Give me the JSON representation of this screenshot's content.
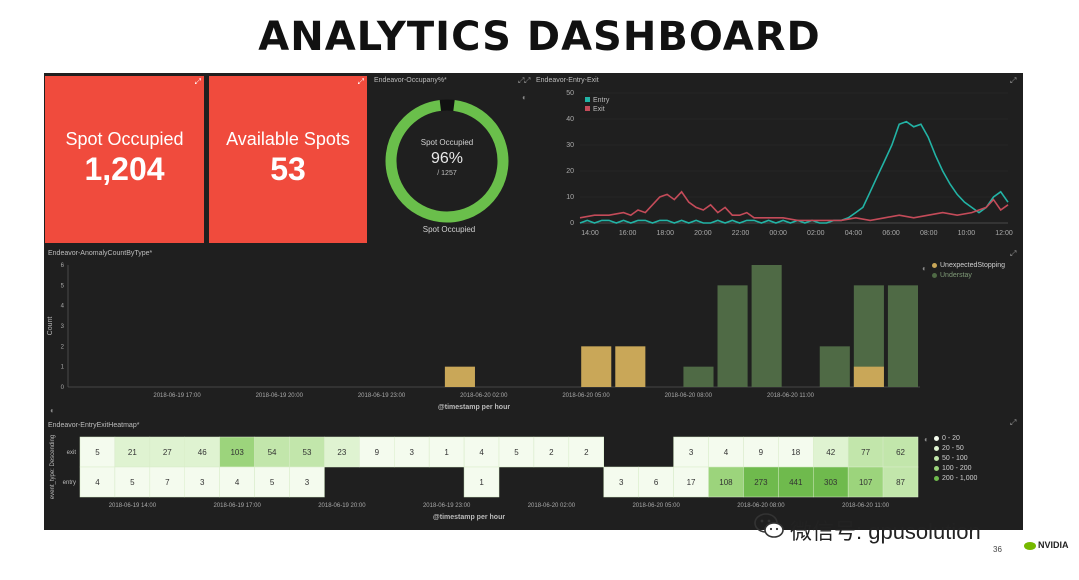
{
  "slide": {
    "title": "ANALYTICS DASHBOARD",
    "page_number": "36"
  },
  "watermark": {
    "text": "微信号: gpusolution",
    "icon": "wechat-icon"
  },
  "brand": {
    "name": "NVIDIA",
    "color": "#76b900"
  },
  "colors": {
    "dashboard_bg": "#1f1f1f",
    "metric_bg": "#f04b3d",
    "gauge_green": "#6abf4b",
    "entry": "#22b3a5",
    "exit": "#c44b59",
    "unexpected": "#c9a758",
    "understay": "#4f6a45"
  },
  "metric_spot_occupied": {
    "label": "Spot Occupied",
    "value": "1,204"
  },
  "metric_available": {
    "label": "Available Spots",
    "value": "53"
  },
  "occupancy_gauge": {
    "title": "Endeavor-Occupany%*",
    "label": "Spot Occupied",
    "percent": 96,
    "percent_text": "96%",
    "total_text": "/ 1257",
    "footer": "Spot Occupied"
  },
  "entry_exit": {
    "title": "Endeavor-Entry-Exit"
  },
  "anomaly": {
    "title": "Endeavor-AnomalyCountByType*"
  },
  "heatmap": {
    "title": "Endeavor-EntryExitHeatmap*"
  },
  "chart_data": [
    {
      "type": "line",
      "title": "Endeavor-Entry-Exit",
      "x": [
        "14:00",
        "16:00",
        "18:00",
        "20:00",
        "22:00",
        "00:00",
        "02:00",
        "04:00",
        "06:00",
        "08:00",
        "10:00",
        "12:00"
      ],
      "ylim": [
        0,
        50
      ],
      "yticks": [
        0,
        10,
        20,
        30,
        40,
        50
      ],
      "legend_position": "top-left",
      "series": [
        {
          "name": "Entry",
          "color": "#22b3a5",
          "points": [
            [
              0,
              0
            ],
            [
              1,
              1
            ],
            [
              2,
              0
            ],
            [
              3,
              1
            ],
            [
              4,
              1
            ],
            [
              5,
              0
            ],
            [
              6,
              1
            ],
            [
              7,
              0
            ],
            [
              8,
              1
            ],
            [
              9,
              1
            ],
            [
              10,
              0
            ],
            [
              11,
              1
            ],
            [
              12,
              1
            ],
            [
              13,
              0
            ],
            [
              14,
              1
            ],
            [
              15,
              0
            ],
            [
              16,
              1
            ],
            [
              17,
              0
            ],
            [
              18,
              0
            ],
            [
              19,
              1
            ],
            [
              20,
              0
            ],
            [
              21,
              1
            ],
            [
              22,
              0
            ],
            [
              23,
              1
            ],
            [
              24,
              1
            ],
            [
              25,
              0
            ],
            [
              26,
              1
            ],
            [
              27,
              0
            ],
            [
              28,
              1
            ],
            [
              29,
              0
            ],
            [
              30,
              1
            ],
            [
              31,
              0
            ],
            [
              32,
              1
            ],
            [
              33,
              0
            ],
            [
              34,
              0
            ],
            [
              35,
              1
            ],
            [
              36,
              1
            ],
            [
              37,
              2
            ],
            [
              38,
              4
            ],
            [
              39,
              6
            ],
            [
              40,
              12
            ],
            [
              41,
              18
            ],
            [
              42,
              24
            ],
            [
              43,
              30
            ],
            [
              44,
              38
            ],
            [
              45,
              39
            ],
            [
              46,
              37
            ],
            [
              47,
              38
            ],
            [
              48,
              33
            ],
            [
              49,
              26
            ],
            [
              50,
              20
            ],
            [
              51,
              15
            ],
            [
              52,
              11
            ],
            [
              53,
              8
            ],
            [
              54,
              6
            ],
            [
              55,
              4
            ],
            [
              56,
              6
            ],
            [
              57,
              10
            ],
            [
              58,
              12
            ],
            [
              59,
              8
            ]
          ]
        },
        {
          "name": "Exit",
          "color": "#c44b59",
          "points": [
            [
              0,
              2
            ],
            [
              2,
              3
            ],
            [
              4,
              3
            ],
            [
              6,
              4
            ],
            [
              7,
              3
            ],
            [
              8,
              5
            ],
            [
              9,
              4
            ],
            [
              10,
              7
            ],
            [
              11,
              10
            ],
            [
              12,
              11
            ],
            [
              13,
              9
            ],
            [
              14,
              12
            ],
            [
              15,
              8
            ],
            [
              16,
              6
            ],
            [
              17,
              5
            ],
            [
              18,
              7
            ],
            [
              19,
              4
            ],
            [
              20,
              6
            ],
            [
              21,
              3
            ],
            [
              22,
              3
            ],
            [
              23,
              4
            ],
            [
              24,
              2
            ],
            [
              26,
              2
            ],
            [
              28,
              2
            ],
            [
              30,
              1
            ],
            [
              32,
              1
            ],
            [
              34,
              1
            ],
            [
              36,
              1
            ],
            [
              38,
              2
            ],
            [
              40,
              1
            ],
            [
              42,
              2
            ],
            [
              44,
              3
            ],
            [
              46,
              2
            ],
            [
              48,
              3
            ],
            [
              50,
              4
            ],
            [
              52,
              3
            ],
            [
              54,
              4
            ],
            [
              56,
              6
            ],
            [
              57,
              9
            ],
            [
              58,
              5
            ],
            [
              59,
              7
            ]
          ]
        }
      ]
    },
    {
      "type": "bar",
      "title": "Endeavor-AnomalyCountByType*",
      "xlabel": "@timestamp per hour",
      "ylabel": "Count",
      "ylim": [
        0,
        6
      ],
      "yticks": [
        0,
        1,
        2,
        3,
        4,
        5,
        6
      ],
      "x_tick_labels": [
        "2018-06-19 17:00",
        "2018-06-19 20:00",
        "2018-06-19 23:00",
        "2018-06-20 02:00",
        "2018-06-20 05:00",
        "2018-06-20 08:00",
        "2018-06-20 11:00"
      ],
      "legend_position": "top-right",
      "series": [
        {
          "name": "UnexpectedStopping",
          "color": "#c9a758",
          "values": [
            {
              "slot": 11,
              "value": 1
            },
            {
              "slot": 15,
              "value": 2
            },
            {
              "slot": 16,
              "value": 2
            },
            {
              "slot": 23,
              "value": 1
            }
          ]
        },
        {
          "name": "Understay",
          "color": "#4f6a45",
          "values": [
            {
              "slot": 18,
              "value": 1
            },
            {
              "slot": 19,
              "value": 5
            },
            {
              "slot": 20,
              "value": 6
            },
            {
              "slot": 22,
              "value": 2
            },
            {
              "slot": 23,
              "value": 5
            },
            {
              "slot": 24,
              "value": 5
            }
          ]
        }
      ]
    },
    {
      "type": "heatmap",
      "title": "Endeavor-EntryExitHeatmap*",
      "xlabel": "@timestamp per hour",
      "ylabel": "event_type: Descending",
      "rows": [
        "exit",
        "entry"
      ],
      "x_tick_labels": [
        "2018-06-19 14:00",
        "2018-06-19 17:00",
        "2018-06-19 20:00",
        "2018-06-19 23:00",
        "2018-06-20 02:00",
        "2018-06-20 05:00",
        "2018-06-20 08:00",
        "2018-06-20 11:00"
      ],
      "values": [
        [
          5,
          21,
          27,
          46,
          103,
          54,
          53,
          23,
          9,
          3,
          1,
          4,
          5,
          2,
          2,
          null,
          null,
          3,
          4,
          9,
          18,
          42,
          77,
          62
        ],
        [
          4,
          5,
          7,
          3,
          4,
          5,
          3,
          null,
          null,
          null,
          null,
          1,
          null,
          null,
          null,
          3,
          6,
          17,
          108,
          273,
          441,
          303,
          107,
          87
        ]
      ],
      "legend": [
        {
          "label": "0 - 20",
          "color": "#f4fbee"
        },
        {
          "label": "20 - 50",
          "color": "#dff3d1"
        },
        {
          "label": "50 - 100",
          "color": "#c2e6ab"
        },
        {
          "label": "100 - 200",
          "color": "#9cd47c"
        },
        {
          "label": "200 - 1,000",
          "color": "#6fba4d"
        }
      ],
      "legend_position": "right"
    }
  ]
}
